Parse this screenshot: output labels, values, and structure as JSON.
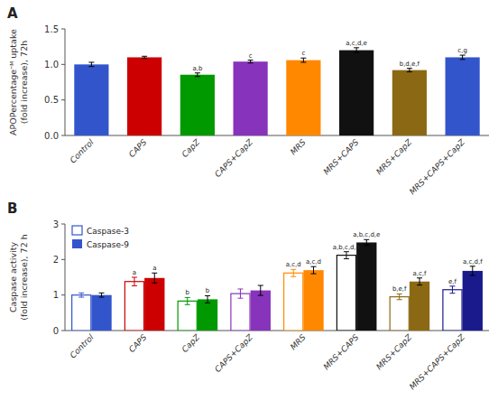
{
  "chart_data": [
    {
      "type": "bar",
      "title": "A",
      "categories": [
        "Control",
        "CAPS",
        "CapZ",
        "CAPS+CapZ",
        "MRS",
        "MRS+CAPS",
        "MRS+CapZ",
        "MRS+CAPS+CapZ"
      ],
      "values": [
        1.0,
        1.1,
        0.855,
        1.04,
        1.06,
        1.2,
        0.92,
        1.1
      ],
      "errors": [
        0.03,
        0.015,
        0.025,
        0.02,
        0.03,
        0.035,
        0.025,
        0.03
      ],
      "colors": [
        "#3355cc",
        "#cc0000",
        "#009900",
        "#8833bb",
        "#ff8800",
        "#111111",
        "#8B6914",
        "#3355cc"
      ],
      "annotations": [
        null,
        null,
        "a,b",
        "c",
        "c",
        "a,c,d,e",
        "b,d,e,f",
        "c,g"
      ],
      "ylabel": "APOPercentageᵔᴹ uptake\n(fold increase), 72h",
      "ylim": [
        0,
        1.5
      ],
      "yticks": [
        {
          "value": 0,
          "label": "0.0"
        },
        0.5,
        {
          "value": 1,
          "label": "1.0"
        },
        1.5
      ],
      "grid": false
    },
    {
      "type": "bar",
      "title": "B",
      "categories": [
        "Control",
        "CAPS",
        "CapZ",
        "CAPS+CapZ",
        "MRS",
        "MRS+CAPS",
        "MRS+CapZ",
        "MRS+CAPS+CapZ"
      ],
      "series": [
        {
          "name": "Caspase-3",
          "color": "#3355cc",
          "colors": [
            "#3355cc",
            "#cc0000",
            "#009900",
            "#8833bb",
            "#ff8800",
            "#111111",
            "#8B6914",
            "#1a1a8c"
          ],
          "values": [
            1.0,
            1.38,
            0.83,
            1.04,
            1.62,
            2.12,
            0.95,
            1.15
          ],
          "errors": [
            0.06,
            0.12,
            0.1,
            0.13,
            0.1,
            0.1,
            0.08,
            0.1
          ],
          "annotations": [
            null,
            "a",
            "b",
            null,
            "a,c,d",
            "a,b,c,d,e",
            "b,e,f",
            "e,f"
          ]
        },
        {
          "name": "Caspase-9",
          "color": "#3355cc",
          "colors": [
            "#3355cc",
            "#cc0000",
            "#009900",
            "#8833bb",
            "#ff8800",
            "#111111",
            "#8B6914",
            "#1a1a8c"
          ],
          "values": [
            1.0,
            1.48,
            0.88,
            1.13,
            1.7,
            2.48,
            1.38,
            1.68
          ],
          "errors": [
            0.06,
            0.14,
            0.1,
            0.14,
            0.1,
            0.08,
            0.1,
            0.13
          ],
          "annotations": [
            null,
            "a",
            "b",
            null,
            "a,c,d",
            "a,b,c,d,e",
            "a,c,f",
            "a,c,d,f"
          ]
        }
      ],
      "ylabel": "Caspase activity\n(fold increase), 72 h",
      "ylim": [
        0,
        3.0
      ],
      "yticks": [
        0,
        1,
        2,
        3
      ],
      "legend": "upper left",
      "grid": false
    }
  ]
}
